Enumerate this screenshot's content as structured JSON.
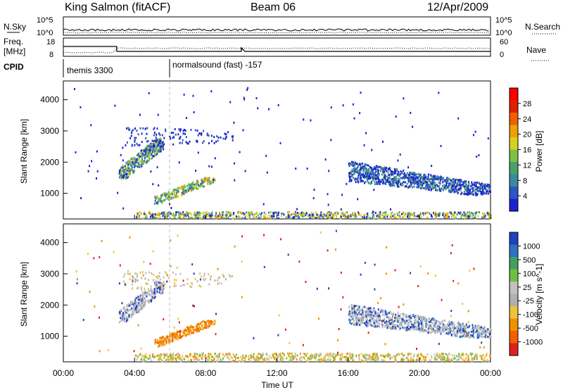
{
  "header": {
    "station": "King Salmon (fitACF)",
    "beam": "Beam 06",
    "date": "12/Apr/2009"
  },
  "top_panels": {
    "nsky_label": "N.Sky",
    "nsearch_label": "N.Search",
    "nsky_ticks": [
      "10^5",
      "10^0"
    ],
    "nsearch_ticks": [
      "10^5",
      "10^0"
    ],
    "freq_label_1": "Freq.",
    "freq_label_2": "[MHz]",
    "freq_ticks": [
      "18",
      "8"
    ],
    "nave_label": "Nave",
    "nave_ticks": [
      "60",
      "0"
    ],
    "cpid_label": "CPID",
    "cpid_segments": [
      {
        "name": "themis 3300",
        "start_hour": 0
      },
      {
        "name": "normalsound (fast) -157",
        "start_hour": 6
      }
    ]
  },
  "colors": {
    "power_scale": [
      "#1f1fd0",
      "#2c56c4",
      "#3a8a9a",
      "#4aa06a",
      "#7cc04a",
      "#d9d020",
      "#f0a000",
      "#f06000",
      "#e02000",
      "#ff0000"
    ],
    "velocity_scale": [
      "#2040c0",
      "#3070c0",
      "#40a060",
      "#70c040",
      "#c0c0c0",
      "#b0b0b0",
      "#f0c040",
      "#f09000",
      "#f06000",
      "#e02020"
    ]
  },
  "chart_data": [
    {
      "type": "heatmap",
      "name": "power",
      "xlabel": "Time UT",
      "ylabel": "Slant Range [km]",
      "x_tick_labels": [
        "00:00",
        "04:00",
        "08:00",
        "12:00",
        "16:00",
        "20:00",
        "00:00"
      ],
      "x_range_hours": [
        0,
        24
      ],
      "y_range": [
        180,
        4600
      ],
      "y_ticks": [
        1000,
        2000,
        3000,
        4000
      ],
      "colorbar_label": "Power [dB]",
      "colorbar_ticks": [
        4,
        8,
        12,
        16,
        20,
        24,
        28
      ],
      "regions": [
        {
          "t0": 3.1,
          "t1": 5.6,
          "r0": 1450,
          "r1": 2700,
          "level": "mixed"
        },
        {
          "t0": 5.0,
          "t1": 8.5,
          "r0": 650,
          "r1": 1500,
          "level": "strong"
        },
        {
          "t0": 3.2,
          "t1": 9.5,
          "r0": 2400,
          "r1": 3500,
          "level": "weak"
        },
        {
          "t0": 16.0,
          "t1": 24.0,
          "r0": 900,
          "r1": 2200,
          "level": "medium"
        }
      ]
    },
    {
      "type": "heatmap",
      "name": "velocity",
      "xlabel": "Time UT",
      "ylabel": "Slant Range [km]",
      "x_tick_labels": [
        "00:00",
        "04:00",
        "08:00",
        "12:00",
        "16:00",
        "20:00",
        "00:00"
      ],
      "x_range_hours": [
        0,
        24
      ],
      "y_range": [
        180,
        4600
      ],
      "y_ticks": [
        1000,
        2000,
        3000,
        4000
      ],
      "colorbar_label": "Velocity [m s^-1]",
      "colorbar_ticks": [
        "1000",
        "500",
        "100",
        "25",
        "-25",
        "-100",
        "-500",
        "-1000"
      ],
      "regions": [
        {
          "t0": 3.1,
          "t1": 5.6,
          "r0": 1450,
          "r1": 2700,
          "level": "gray"
        },
        {
          "t0": 5.0,
          "t1": 8.5,
          "r0": 650,
          "r1": 1500,
          "level": "orange"
        },
        {
          "t0": 16.0,
          "t1": 24.0,
          "r0": 900,
          "r1": 2200,
          "level": "gray"
        }
      ]
    }
  ]
}
